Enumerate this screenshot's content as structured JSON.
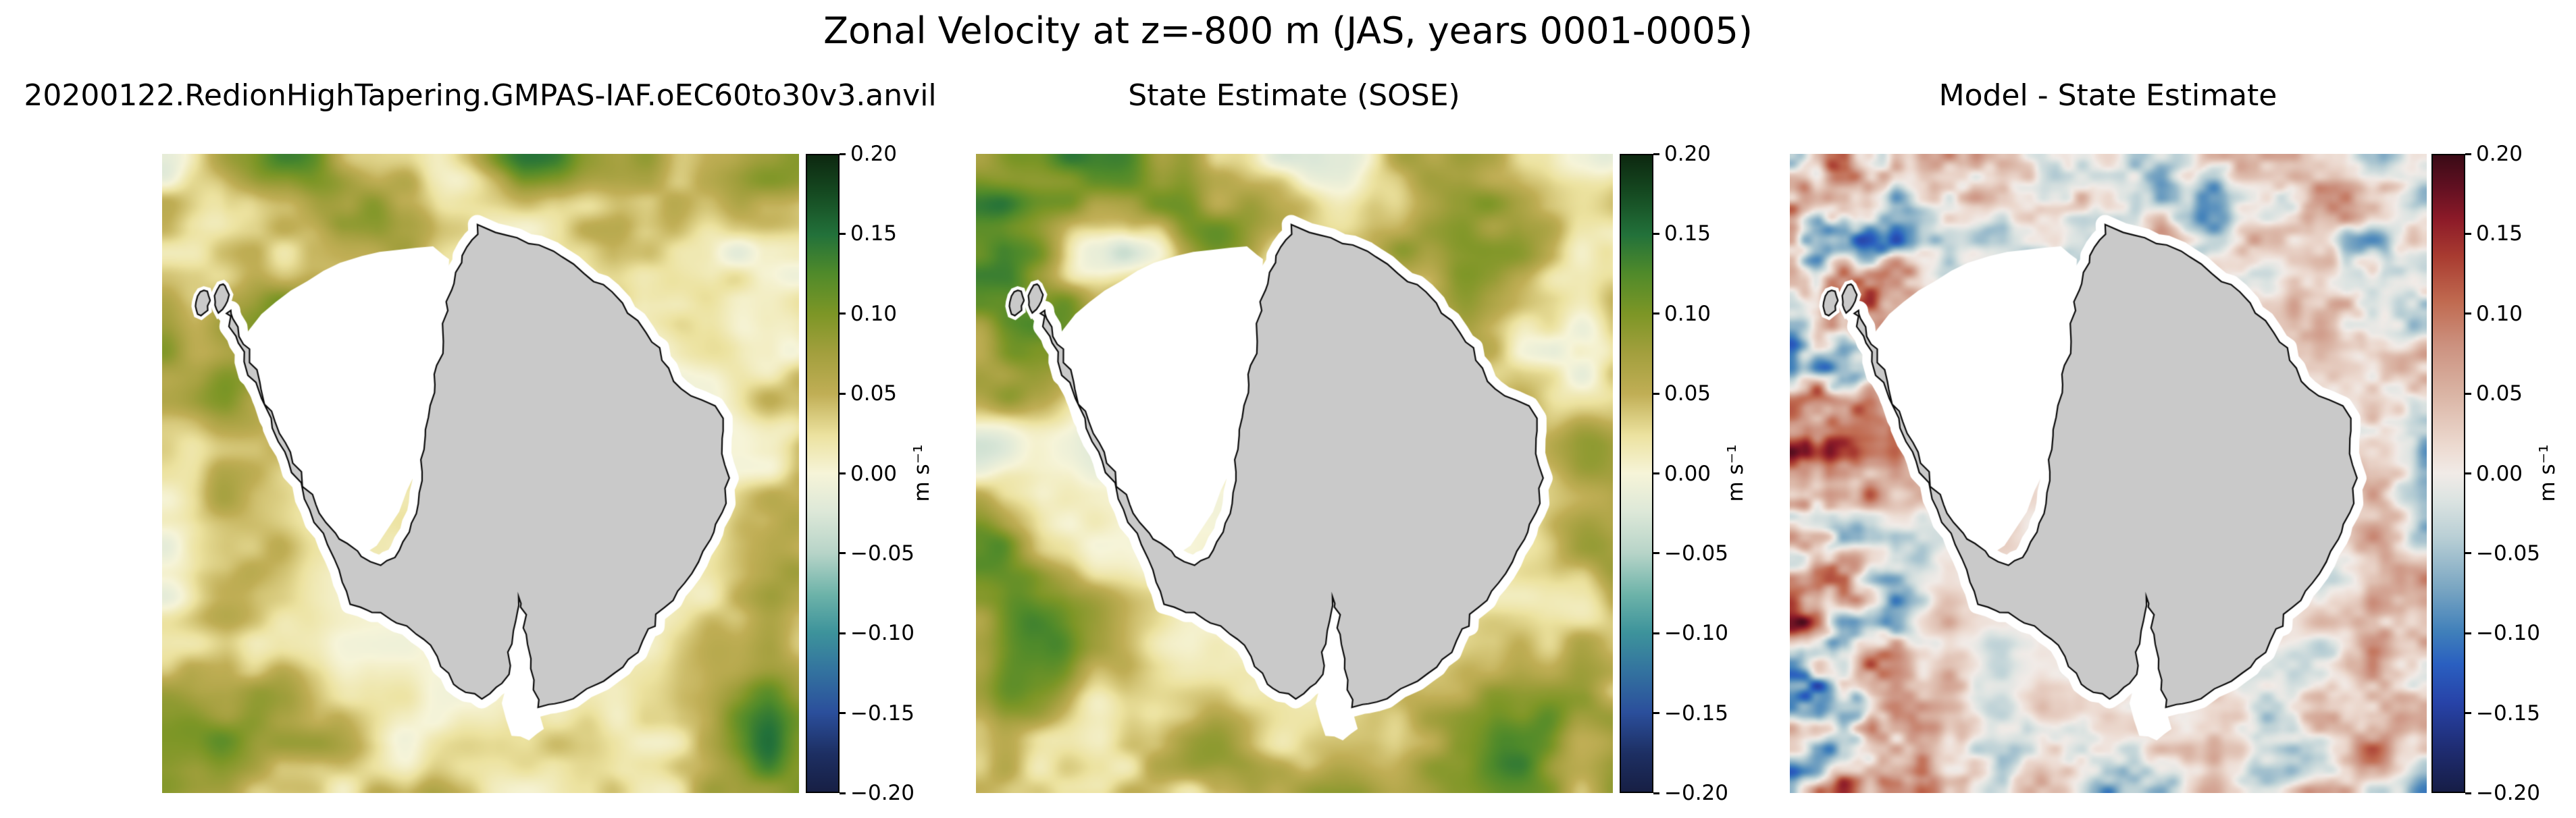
{
  "figure": {
    "suptitle": "Zonal Velocity at z=-800 m (JAS, years 0001-0005)",
    "panels": [
      {
        "title": "20200122.RedionHighTapering.GMPAS-IAF.oEC60to30v3.anvil",
        "colormap": "delta"
      },
      {
        "title": "State Estimate (SOSE)",
        "colormap": "delta"
      },
      {
        "title": "Model - State Estimate",
        "colormap": "balance"
      }
    ],
    "colorbar": {
      "tick_labels": [
        "0.20",
        "0.15",
        "0.10",
        "0.05",
        "0.00",
        "−0.05",
        "−0.10",
        "−0.15",
        "−0.20"
      ],
      "unit_label": "m s⁻¹"
    },
    "colors": {
      "background": "#ffffff",
      "land_fill": "#c9c9c9",
      "coast_stroke": "#0a0a0a",
      "ice_shelf": "#ffffff",
      "text": "#000000",
      "colormaps": {
        "delta": [
          [
            0.0,
            "#171f44"
          ],
          [
            0.06,
            "#1d2f63"
          ],
          [
            0.125,
            "#2b4f9c"
          ],
          [
            0.19,
            "#33739f"
          ],
          [
            0.25,
            "#3d939b"
          ],
          [
            0.31,
            "#6db3a9"
          ],
          [
            0.375,
            "#b7d4c8"
          ],
          [
            0.44,
            "#dde8d8"
          ],
          [
            0.5,
            "#f6f4d8"
          ],
          [
            0.56,
            "#ece29f"
          ],
          [
            0.625,
            "#c0ae55"
          ],
          [
            0.69,
            "#a29f3d"
          ],
          [
            0.75,
            "#7d9626"
          ],
          [
            0.815,
            "#4f8a2a"
          ],
          [
            0.875,
            "#22713a"
          ],
          [
            0.94,
            "#154a21"
          ],
          [
            1.0,
            "#0d2810"
          ]
        ],
        "balance": [
          [
            0.0,
            "#161d46"
          ],
          [
            0.07,
            "#1f2d74"
          ],
          [
            0.14,
            "#2743a8"
          ],
          [
            0.2,
            "#2a5fc0"
          ],
          [
            0.25,
            "#3f7fba"
          ],
          [
            0.32,
            "#7aa6c2"
          ],
          [
            0.4,
            "#b9cfd5"
          ],
          [
            0.46,
            "#dde4e2"
          ],
          [
            0.5,
            "#f1ebe7"
          ],
          [
            0.545,
            "#ecd9cf"
          ],
          [
            0.625,
            "#dab4a4"
          ],
          [
            0.7,
            "#cc9280"
          ],
          [
            0.77,
            "#c06a50"
          ],
          [
            0.84,
            "#a93c31"
          ],
          [
            0.9,
            "#8c1a28"
          ],
          [
            0.95,
            "#611021"
          ],
          [
            1.0,
            "#3a0a16"
          ]
        ]
      }
    }
  },
  "chart_data": {
    "type": "heatmap",
    "title": "Zonal Velocity at z=-800 m (JAS, years 0001-0005)",
    "variable": "Zonal Velocity",
    "depth_m": -800,
    "season": "JAS",
    "years": "0001-0005",
    "units": "m s⁻¹",
    "region": "Southern Ocean around Antarctica (south polar stereographic view)",
    "value_range": [
      -0.2,
      0.2
    ],
    "colorbar_ticks": [
      0.2,
      0.15,
      0.1,
      0.05,
      0.0,
      -0.05,
      -0.1,
      -0.15,
      -0.2
    ],
    "legend_position": "right of each panel, vertical colorbar",
    "grid": false,
    "panels": [
      {
        "title": "20200122.RedionHighTapering.GMPAS-IAF.oEC60to30v3.anvil",
        "role": "model field",
        "colormap": "delta (blue-teal negative, cream zero, khaki-olive-green positive)",
        "description": "Mostly weakly positive (pale khaki) zonal flow ring around Antarctica with olive/green streaks offshore, dark green and teal patches near panel corners, pale cream and light blue-green near the coast and in the Weddell embayment; continent gray with white ice-shelf fringe"
      },
      {
        "title": "State Estimate (SOSE)",
        "role": "observational state estimate",
        "colormap": "delta (blue-teal negative, cream zero, khaki-olive-green positive)",
        "description": "Similar khaki/olive eastward ring but with stronger teal (negative) streaks north of the continent and around the coast, stronger dark green filaments in the western (left) sector"
      },
      {
        "title": "Model - State Estimate",
        "role": "difference (model minus state estimate)",
        "colormap": "balance (blue negative, pinkish-white zero, red positive)",
        "description": "Small-scale mottled red/blue differences, near-white over most of the interior ocean, strongest red and blue eddies in the western sector (Drake Passage side) and along the outer ring"
      }
    ]
  }
}
